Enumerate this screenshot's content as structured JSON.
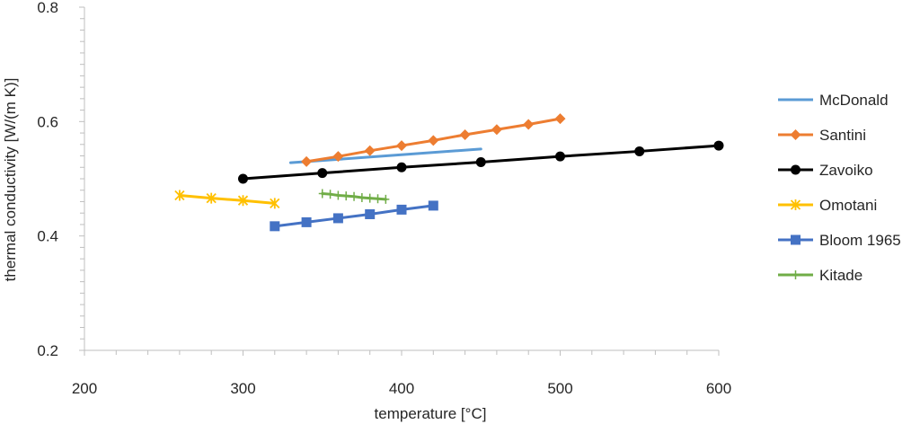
{
  "chart_data": {
    "type": "line",
    "title": "",
    "xlabel": "temperature [°C]",
    "ylabel": "thermal conductivity [W/(m K)]",
    "xlim": [
      200,
      600
    ],
    "ylim": [
      0.2,
      0.8
    ],
    "xticks": [
      200,
      300,
      400,
      500,
      600
    ],
    "yticks": [
      0.2,
      0.4,
      0.6,
      0.8
    ],
    "xtick_labels": [
      "200",
      "300",
      "400",
      "500",
      "600"
    ],
    "ytick_labels": [
      "0.2",
      "0.4",
      "0.6",
      "0.8"
    ],
    "grid": false,
    "legend_position": "right",
    "series": [
      {
        "name": "McDonald",
        "color": "#5B9BD5",
        "marker": "none",
        "x": [
          330,
          450
        ],
        "y": [
          0.528,
          0.552
        ]
      },
      {
        "name": "Santini",
        "color": "#ED7D31",
        "marker": "diamond",
        "x": [
          340,
          360,
          380,
          400,
          420,
          440,
          460,
          480,
          500
        ],
        "y": [
          0.53,
          0.539,
          0.549,
          0.558,
          0.567,
          0.577,
          0.586,
          0.595,
          0.605
        ]
      },
      {
        "name": "Zavoiko",
        "color": "#000000",
        "marker": "circle",
        "x": [
          300,
          350,
          400,
          450,
          500,
          550,
          600
        ],
        "y": [
          0.5,
          0.51,
          0.52,
          0.529,
          0.539,
          0.548,
          0.558
        ]
      },
      {
        "name": "Omotani",
        "color": "#FFC000",
        "marker": "star",
        "x": [
          260,
          280,
          300,
          320
        ],
        "y": [
          0.471,
          0.466,
          0.462,
          0.457
        ]
      },
      {
        "name": "Bloom 1965",
        "color": "#4472C4",
        "marker": "square",
        "x": [
          320,
          340,
          360,
          380,
          400,
          420
        ],
        "y": [
          0.417,
          0.424,
          0.431,
          0.438,
          0.446,
          0.453
        ]
      },
      {
        "name": "Kitade",
        "color": "#70AD47",
        "marker": "plus",
        "x": [
          350,
          355,
          360,
          365,
          370,
          375,
          380,
          385,
          390
        ],
        "y": [
          0.474,
          0.473,
          0.471,
          0.47,
          0.469,
          0.467,
          0.466,
          0.465,
          0.464
        ]
      }
    ]
  }
}
